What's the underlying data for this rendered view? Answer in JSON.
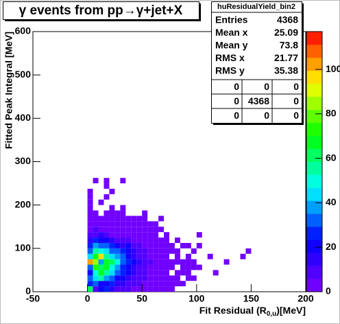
{
  "chart_data": {
    "type": "heatmap",
    "title": "γ events from pp→γ+jet+X",
    "x_label": "Fit Residual (R",
    "x_label_sub": "0,u",
    "x_label_end": ")[MeV]",
    "y_label": "Fitted Peak Integral [MeV]",
    "xlim": [
      -50,
      200
    ],
    "xticks": [
      -50,
      0,
      50,
      100,
      150,
      200
    ],
    "ylim": [
      0,
      600
    ],
    "yticks": [
      0,
      100,
      200,
      300,
      400,
      500,
      600
    ],
    "zlim": [
      0,
      117
    ],
    "zticks": [
      0,
      20,
      40,
      60,
      80,
      100
    ],
    "bin_width_x": 5,
    "bin_width_y": 12.5,
    "palette": [
      "#8000ff",
      "#0000ff",
      "#00ffff",
      "#00ff00",
      "#ffff00",
      "#ff0000"
    ],
    "x": [
      0,
      5,
      10,
      15,
      20,
      25,
      30,
      35,
      40,
      45,
      50,
      55,
      60,
      65,
      70,
      75,
      0,
      5,
      10,
      15,
      20,
      25,
      30,
      35,
      40,
      45,
      50,
      55,
      60,
      65,
      70,
      75,
      80,
      85,
      0,
      5,
      10,
      15,
      20,
      25,
      30,
      35,
      40,
      45,
      50,
      55,
      60,
      65,
      70,
      75,
      80,
      90,
      95,
      0,
      5,
      10,
      15,
      20,
      25,
      30,
      35,
      40,
      45,
      50,
      55,
      60,
      65,
      70,
      80,
      85,
      90,
      115,
      0,
      5,
      10,
      15,
      20,
      25,
      30,
      35,
      40,
      45,
      50,
      55,
      60,
      65,
      70,
      75,
      85,
      90,
      95,
      100,
      0,
      5,
      10,
      15,
      20,
      25,
      30,
      35,
      40,
      45,
      50,
      55,
      60,
      65,
      70,
      75,
      80,
      85,
      90,
      95,
      125,
      0,
      5,
      10,
      15,
      20,
      25,
      30,
      35,
      40,
      45,
      50,
      55,
      60,
      65,
      70,
      80,
      90,
      110,
      140,
      0,
      5,
      10,
      15,
      20,
      25,
      30,
      35,
      40,
      45,
      50,
      55,
      60,
      65,
      70,
      75,
      80,
      95,
      145,
      0,
      5,
      10,
      15,
      20,
      25,
      30,
      35,
      40,
      45,
      50,
      55,
      60,
      65,
      70,
      75,
      85,
      90,
      100,
      0,
      5,
      10,
      15,
      20,
      25,
      30,
      35,
      40,
      45,
      50,
      55,
      60,
      65,
      70,
      80,
      0,
      5,
      10,
      15,
      20,
      25,
      30,
      35,
      40,
      45,
      50,
      55,
      60,
      70,
      100,
      0,
      5,
      10,
      15,
      20,
      25,
      30,
      35,
      40,
      45,
      50,
      55,
      60,
      65,
      0,
      5,
      10,
      15,
      20,
      25,
      30,
      35,
      40,
      45,
      50,
      55,
      60,
      0,
      5,
      10,
      15,
      20,
      25,
      30,
      35,
      40,
      45,
      50,
      65,
      0,
      5,
      15,
      20,
      25,
      30,
      50,
      0,
      20,
      30,
      0,
      10,
      0,
      15,
      0,
      20,
      15,
      5,
      15,
      30
    ],
    "y": [
      0,
      0,
      0,
      0,
      0,
      0,
      0,
      0,
      0,
      0,
      0,
      0,
      0,
      0,
      0,
      0,
      12.5,
      12.5,
      12.5,
      12.5,
      12.5,
      12.5,
      12.5,
      12.5,
      12.5,
      12.5,
      12.5,
      12.5,
      12.5,
      12.5,
      12.5,
      12.5,
      12.5,
      12.5,
      25,
      25,
      25,
      25,
      25,
      25,
      25,
      25,
      25,
      25,
      25,
      25,
      25,
      25,
      25,
      25,
      25,
      25,
      25,
      37.5,
      37.5,
      37.5,
      37.5,
      37.5,
      37.5,
      37.5,
      37.5,
      37.5,
      37.5,
      37.5,
      37.5,
      37.5,
      37.5,
      37.5,
      37.5,
      37.5,
      37.5,
      37.5,
      50,
      50,
      50,
      50,
      50,
      50,
      50,
      50,
      50,
      50,
      50,
      50,
      50,
      50,
      50,
      50,
      50,
      50,
      50,
      50,
      62.5,
      62.5,
      62.5,
      62.5,
      62.5,
      62.5,
      62.5,
      62.5,
      62.5,
      62.5,
      62.5,
      62.5,
      62.5,
      62.5,
      62.5,
      62.5,
      62.5,
      62.5,
      62.5,
      62.5,
      62.5,
      75,
      75,
      75,
      75,
      75,
      75,
      75,
      75,
      75,
      75,
      75,
      75,
      75,
      75,
      75,
      75,
      75,
      75,
      75,
      87.5,
      87.5,
      87.5,
      87.5,
      87.5,
      87.5,
      87.5,
      87.5,
      87.5,
      87.5,
      87.5,
      87.5,
      87.5,
      87.5,
      87.5,
      87.5,
      87.5,
      87.5,
      87.5,
      100,
      100,
      100,
      100,
      100,
      100,
      100,
      100,
      100,
      100,
      100,
      100,
      100,
      100,
      100,
      100,
      100,
      100,
      100,
      112.5,
      112.5,
      112.5,
      112.5,
      112.5,
      112.5,
      112.5,
      112.5,
      112.5,
      112.5,
      112.5,
      112.5,
      112.5,
      112.5,
      112.5,
      112.5,
      125,
      125,
      125,
      125,
      125,
      125,
      125,
      125,
      125,
      125,
      125,
      125,
      125,
      125,
      125,
      137.5,
      137.5,
      137.5,
      137.5,
      137.5,
      137.5,
      137.5,
      137.5,
      137.5,
      137.5,
      137.5,
      137.5,
      137.5,
      137.5,
      150,
      150,
      150,
      150,
      150,
      150,
      150,
      150,
      150,
      150,
      150,
      150,
      150,
      162.5,
      162.5,
      162.5,
      162.5,
      162.5,
      162.5,
      162.5,
      162.5,
      162.5,
      162.5,
      162.5,
      162.5,
      175,
      175,
      175,
      175,
      175,
      175,
      175,
      187.5,
      187.5,
      187.5,
      200,
      200,
      212.5,
      212.5,
      225,
      225,
      237.5,
      250,
      250,
      250
    ],
    "values": [
      60,
      8,
      20,
      25,
      12,
      10,
      8,
      6,
      5,
      4,
      3,
      3,
      2,
      2,
      1,
      1,
      25,
      30,
      18,
      22,
      28,
      15,
      12,
      10,
      8,
      6,
      5,
      4,
      3,
      2,
      2,
      1,
      1,
      1,
      35,
      45,
      55,
      40,
      30,
      22,
      18,
      14,
      10,
      8,
      6,
      5,
      3,
      2,
      2,
      1,
      1,
      1,
      1,
      20,
      50,
      65,
      55,
      45,
      35,
      25,
      18,
      12,
      9,
      6,
      4,
      3,
      2,
      1,
      1,
      1,
      1,
      1,
      30,
      75,
      60,
      70,
      50,
      40,
      28,
      22,
      14,
      10,
      7,
      5,
      4,
      2,
      2,
      1,
      1,
      1,
      1,
      1,
      105,
      85,
      40,
      65,
      60,
      50,
      35,
      25,
      18,
      12,
      8,
      6,
      4,
      3,
      2,
      2,
      1,
      1,
      1,
      1,
      1,
      45,
      70,
      95,
      55,
      45,
      40,
      30,
      20,
      15,
      10,
      7,
      5,
      4,
      3,
      2,
      1,
      1,
      1,
      1,
      30,
      55,
      50,
      45,
      35,
      30,
      25,
      18,
      12,
      9,
      6,
      4,
      3,
      2,
      2,
      1,
      1,
      1,
      1,
      25,
      40,
      35,
      30,
      25,
      20,
      15,
      22,
      10,
      7,
      5,
      3,
      2,
      2,
      1,
      1,
      1,
      1,
      1,
      15,
      25,
      20,
      18,
      12,
      10,
      8,
      6,
      5,
      4,
      3,
      2,
      2,
      1,
      1,
      1,
      8,
      10,
      12,
      8,
      5,
      4,
      3,
      3,
      2,
      2,
      1,
      1,
      1,
      1,
      1,
      5,
      6,
      4,
      3,
      3,
      2,
      2,
      2,
      1,
      1,
      1,
      1,
      1,
      1,
      3,
      3,
      2,
      2,
      1,
      1,
      1,
      1,
      1,
      1,
      1,
      1,
      1,
      2,
      1,
      1,
      2,
      1,
      1,
      1,
      1,
      1,
      1,
      1,
      1,
      1,
      1,
      1,
      1,
      1,
      1,
      1,
      1,
      1,
      1,
      1,
      1,
      1,
      1,
      1,
      1,
      1,
      1,
      1,
      1
    ]
  },
  "stats": {
    "title": "huResidualYield_bin2",
    "rows": [
      [
        "Entries",
        4368
      ],
      [
        "Mean x",
        25.09
      ],
      [
        "Mean y",
        73.8
      ],
      [
        "RMS x",
        21.77
      ],
      [
        "RMS y",
        35.38
      ]
    ],
    "grid": [
      [
        0,
        0,
        0
      ],
      [
        0,
        4368,
        0
      ],
      [
        0,
        0,
        0
      ]
    ]
  }
}
